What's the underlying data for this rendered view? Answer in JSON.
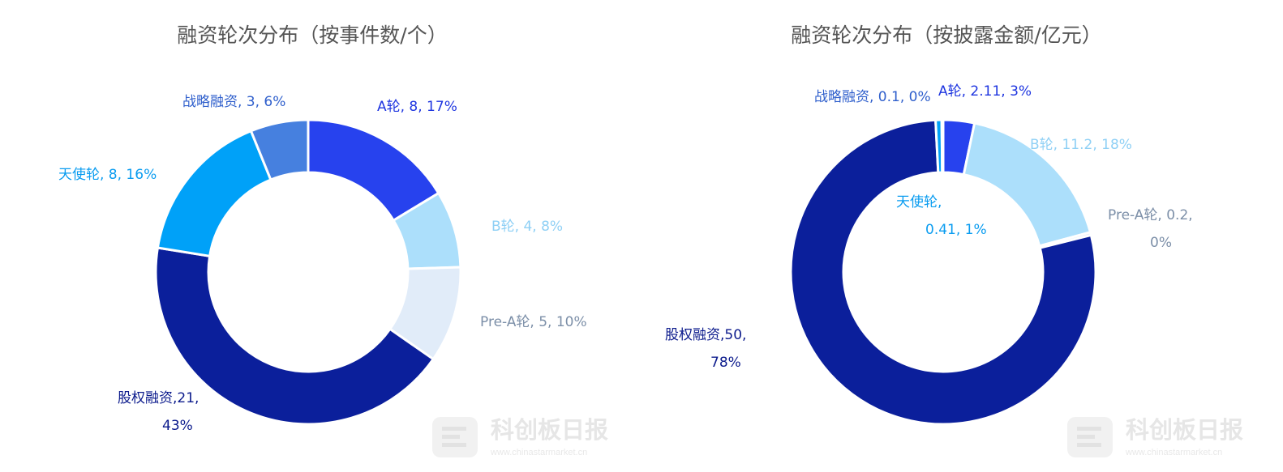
{
  "chart_data": [
    {
      "type": "pie",
      "title": "融资轮次分布（按事件数/个）",
      "slices": [
        {
          "name": "A轮",
          "value": 8,
          "percent": "17%",
          "color": "#2742ee",
          "label_lines": [
            "A轮, 8, 17%"
          ]
        },
        {
          "name": "B轮",
          "value": 4,
          "percent": "8%",
          "color": "#acdffb",
          "label_lines": [
            "B轮, 4, 8%"
          ]
        },
        {
          "name": "Pre-A轮",
          "value": 5,
          "percent": "10%",
          "color": "#e1ecf9",
          "label_lines": [
            "Pre-A轮, 5, 10%"
          ]
        },
        {
          "name": "股权融资",
          "value": 21,
          "percent": "43%",
          "color": "#0b1f9b",
          "label_lines": [
            "股权融资,21,",
            "43%"
          ]
        },
        {
          "name": "天使轮",
          "value": 8,
          "percent": "16%",
          "color": "#00a1f8",
          "label_lines": [
            "天使轮, 8, 16%"
          ]
        },
        {
          "name": "战略融资",
          "value": 3,
          "percent": "6%",
          "color": "#4680df",
          "label_lines": [
            "战略融资, 3, 6%"
          ]
        }
      ]
    },
    {
      "type": "pie",
      "title": "融资轮次分布（按披露金额/亿元）",
      "slices": [
        {
          "name": "A轮",
          "value": 2.11,
          "percent": "3%",
          "color": "#2742ee",
          "label_lines": [
            "A轮, 2.11, 3%"
          ]
        },
        {
          "name": "B轮",
          "value": 11.2,
          "percent": "18%",
          "color": "#acdffb",
          "label_lines": [
            "B轮, 11.2, 18%"
          ]
        },
        {
          "name": "Pre-A轮",
          "value": 0.2,
          "percent": "0%",
          "color": "#e1ecf9",
          "label_lines": [
            "Pre-A轮, 0.2,",
            "0%"
          ]
        },
        {
          "name": "股权融资",
          "value": 50,
          "percent": "78%",
          "color": "#0b1f9b",
          "label_lines": [
            "股权融资,50,",
            "78%"
          ]
        },
        {
          "name": "天使轮",
          "value": 0.41,
          "percent": "1%",
          "color": "#00a1f8",
          "label_lines": [
            "天使轮,",
            "0.41, 1%"
          ]
        },
        {
          "name": "战略融资",
          "value": 0.1,
          "percent": "0%",
          "color": "#4680df",
          "label_lines": [
            "战略融资, 0.1, 0%"
          ]
        }
      ]
    }
  ],
  "label_colors": {
    "A轮": "#1f36e0",
    "B轮": "#8fd0f5",
    "Pre-A轮": "#7c8fa8",
    "股权融资": "#0b1a8c",
    "天使轮": "#0a9cf0",
    "战略融资": "#2f5fcc"
  },
  "watermark": {
    "brand": "科创板日报",
    "url": "www.chinastarmarket.cn"
  }
}
